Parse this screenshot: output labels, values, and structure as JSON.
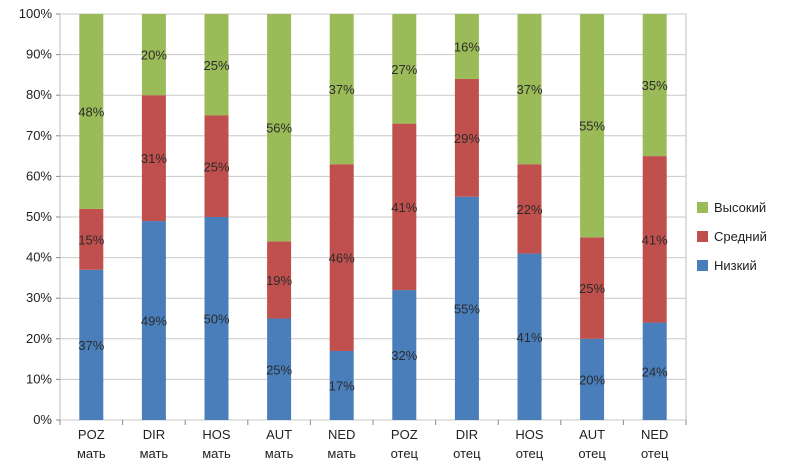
{
  "chart_data": {
    "type": "bar",
    "stacked": true,
    "categories": [
      [
        "POZ",
        "мать"
      ],
      [
        "DIR",
        "мать"
      ],
      [
        "HOS",
        "мать"
      ],
      [
        "AUT",
        "мать"
      ],
      [
        "NED",
        "мать"
      ],
      [
        "POZ",
        "отец"
      ],
      [
        "DIR",
        "отец"
      ],
      [
        "HOS",
        "отец"
      ],
      [
        "AUT",
        "отец"
      ],
      [
        "NED",
        "отец"
      ]
    ],
    "series": [
      {
        "name": "Низкий",
        "color": "#4a7ebb",
        "values": [
          37,
          49,
          50,
          25,
          17,
          32,
          55,
          41,
          20,
          24
        ]
      },
      {
        "name": "Средний",
        "color": "#c0504d",
        "values": [
          15,
          31,
          25,
          19,
          46,
          41,
          29,
          22,
          25,
          41
        ]
      },
      {
        "name": "Высокий",
        "color": "#9bbb59",
        "values": [
          48,
          20,
          25,
          56,
          37,
          27,
          16,
          37,
          55,
          35
        ]
      }
    ],
    "data_labels": true,
    "label_suffix": "%",
    "ylim": [
      0,
      100
    ],
    "yticks": [
      "0%",
      "10%",
      "20%",
      "30%",
      "40%",
      "50%",
      "60%",
      "70%",
      "80%",
      "90%",
      "100%"
    ],
    "grid": true,
    "legend": {
      "position": "right",
      "order": [
        "Высокий",
        "Средний",
        "Низкий"
      ]
    },
    "title": "",
    "xlabel": "",
    "ylabel": ""
  }
}
